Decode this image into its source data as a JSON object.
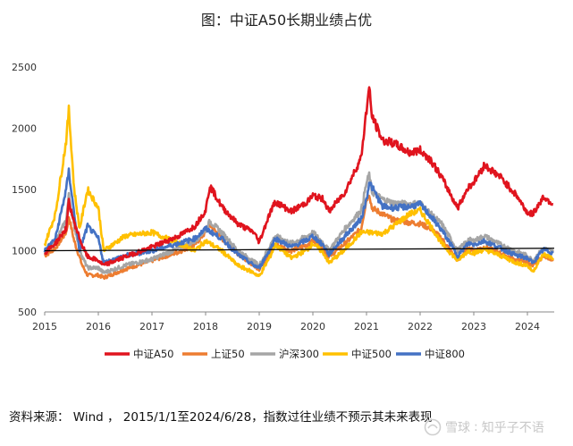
{
  "chart_data": {
    "type": "line",
    "title": "图：中证A50长期业绩占优",
    "xlabel": "",
    "ylabel": "",
    "x_ticks": [
      "2015",
      "2016",
      "2017",
      "2018",
      "2019",
      "2020",
      "2021",
      "2022",
      "2023",
      "2024"
    ],
    "y_ticks": [
      500,
      1000,
      1500,
      2000,
      2500
    ],
    "ylim": [
      500,
      2500
    ],
    "xlim": [
      2015.0,
      2024.5
    ],
    "grid": false,
    "legend_position": "bottom",
    "baseline": {
      "from": [
        2015.0,
        1000
      ],
      "to": [
        2024.5,
        1020
      ]
    },
    "series": [
      {
        "name": "中证A50",
        "color": "#e0141e",
        "x": [
          2015.0,
          2015.2,
          2015.4,
          2015.45,
          2015.55,
          2015.7,
          2015.8,
          2016.0,
          2016.1,
          2016.5,
          2017.0,
          2017.5,
          2017.8,
          2018.0,
          2018.08,
          2018.3,
          2018.6,
          2018.9,
          2019.0,
          2019.2,
          2019.3,
          2019.6,
          2019.9,
          2020.0,
          2020.2,
          2020.3,
          2020.6,
          2020.9,
          2021.0,
          2021.05,
          2021.1,
          2021.3,
          2021.5,
          2021.8,
          2022.0,
          2022.2,
          2022.4,
          2022.7,
          2022.9,
          2023.0,
          2023.2,
          2023.5,
          2023.8,
          2024.0,
          2024.1,
          2024.3,
          2024.48
        ],
        "values": [
          980,
          1060,
          1180,
          1400,
          1230,
          1040,
          950,
          920,
          880,
          950,
          1030,
          1120,
          1200,
          1330,
          1530,
          1360,
          1220,
          1150,
          1070,
          1310,
          1400,
          1320,
          1400,
          1450,
          1420,
          1320,
          1480,
          1760,
          2150,
          2330,
          2100,
          1900,
          1880,
          1800,
          1820,
          1740,
          1600,
          1350,
          1520,
          1560,
          1700,
          1600,
          1450,
          1310,
          1300,
          1440,
          1380
        ]
      },
      {
        "name": "上证50",
        "color": "#ed7d31",
        "x": [
          2015.0,
          2015.2,
          2015.4,
          2015.45,
          2015.55,
          2015.7,
          2015.8,
          2016.0,
          2016.1,
          2016.5,
          2017.0,
          2017.5,
          2017.8,
          2018.0,
          2018.08,
          2018.3,
          2018.6,
          2018.9,
          2019.0,
          2019.2,
          2019.3,
          2019.6,
          2019.9,
          2020.0,
          2020.2,
          2020.3,
          2020.6,
          2020.9,
          2021.0,
          2021.05,
          2021.1,
          2021.3,
          2021.5,
          2021.8,
          2022.0,
          2022.2,
          2022.4,
          2022.7,
          2022.9,
          2023.0,
          2023.2,
          2023.5,
          2023.8,
          2024.0,
          2024.1,
          2024.3,
          2024.48
        ],
        "values": [
          960,
          1020,
          1150,
          1280,
          1080,
          880,
          800,
          800,
          780,
          850,
          920,
          990,
          1050,
          1150,
          1210,
          1100,
          980,
          880,
          850,
          980,
          1050,
          1000,
          1050,
          1080,
          1010,
          950,
          1060,
          1180,
          1420,
          1470,
          1350,
          1300,
          1250,
          1230,
          1220,
          1180,
          1100,
          920,
          1020,
          1000,
          1030,
          980,
          920,
          910,
          870,
          960,
          930
        ]
      },
      {
        "name": "沪深300",
        "color": "#a5a5a5",
        "x": [
          2015.0,
          2015.2,
          2015.4,
          2015.45,
          2015.55,
          2015.7,
          2015.8,
          2016.0,
          2016.1,
          2016.5,
          2017.0,
          2017.5,
          2017.8,
          2018.0,
          2018.08,
          2018.3,
          2018.6,
          2018.9,
          2019.0,
          2019.2,
          2019.3,
          2019.6,
          2019.9,
          2020.0,
          2020.2,
          2020.3,
          2020.6,
          2020.9,
          2021.0,
          2021.05,
          2021.1,
          2021.3,
          2021.5,
          2021.8,
          2022.0,
          2022.2,
          2022.4,
          2022.7,
          2022.9,
          2023.0,
          2023.2,
          2023.5,
          2023.8,
          2024.0,
          2024.1,
          2024.3,
          2024.48
        ],
        "values": [
          980,
          1070,
          1250,
          1450,
          1200,
          950,
          860,
          860,
          820,
          880,
          930,
          1020,
          1080,
          1170,
          1240,
          1150,
          1000,
          910,
          880,
          1040,
          1120,
          1060,
          1120,
          1150,
          1060,
          1000,
          1180,
          1330,
          1550,
          1620,
          1480,
          1420,
          1390,
          1380,
          1390,
          1300,
          1220,
          1000,
          1090,
          1080,
          1120,
          1050,
          990,
          960,
          920,
          1020,
          990
        ]
      },
      {
        "name": "中证500",
        "color": "#ffc000",
        "x": [
          2015.0,
          2015.2,
          2015.3,
          2015.4,
          2015.45,
          2015.55,
          2015.65,
          2015.8,
          2016.0,
          2016.1,
          2016.5,
          2017.0,
          2017.5,
          2017.8,
          2018.0,
          2018.3,
          2018.6,
          2018.9,
          2019.0,
          2019.2,
          2019.3,
          2019.6,
          2019.9,
          2020.0,
          2020.2,
          2020.3,
          2020.6,
          2020.9,
          2021.0,
          2021.3,
          2021.5,
          2021.8,
          2022.0,
          2022.2,
          2022.4,
          2022.7,
          2022.9,
          2023.0,
          2023.2,
          2023.5,
          2023.8,
          2024.0,
          2024.1,
          2024.3,
          2024.48
        ],
        "values": [
          1050,
          1300,
          1600,
          1900,
          2150,
          1500,
          1180,
          1500,
          1350,
          1000,
          1120,
          1150,
          1060,
          1000,
          1080,
          1000,
          880,
          820,
          790,
          950,
          1050,
          940,
          1010,
          1060,
          980,
          900,
          1010,
          1150,
          1150,
          1140,
          1200,
          1300,
          1330,
          1200,
          1060,
          920,
          1000,
          980,
          1010,
          960,
          900,
          880,
          830,
          970,
          940
        ]
      },
      {
        "name": "中证800",
        "color": "#4472c4",
        "x": [
          2015.0,
          2015.2,
          2015.3,
          2015.4,
          2015.45,
          2015.55,
          2015.65,
          2015.8,
          2016.0,
          2016.1,
          2016.5,
          2017.0,
          2017.5,
          2017.8,
          2018.0,
          2018.3,
          2018.6,
          2018.9,
          2019.0,
          2019.2,
          2019.3,
          2019.6,
          2019.9,
          2020.0,
          2020.2,
          2020.3,
          2020.6,
          2020.9,
          2021.0,
          2021.05,
          2021.3,
          2021.5,
          2021.8,
          2022.0,
          2022.2,
          2022.4,
          2022.7,
          2022.9,
          2023.0,
          2023.2,
          2023.5,
          2023.8,
          2024.0,
          2024.1,
          2024.3,
          2024.48
        ],
        "values": [
          1000,
          1100,
          1300,
          1500,
          1650,
          1300,
          1000,
          1200,
          1100,
          900,
          960,
          1000,
          1060,
          1100,
          1180,
          1100,
          970,
          880,
          860,
          1010,
          1100,
          1030,
          1090,
          1120,
          1040,
          970,
          1120,
          1260,
          1420,
          1560,
          1360,
          1350,
          1360,
          1380,
          1280,
          1170,
          960,
          1060,
          1050,
          1080,
          1020,
          960,
          940,
          900,
          1010,
          980
        ]
      }
    ]
  },
  "source_text": "资料来源： Wind ， 2015/1/1至2024/6/28，指数过往业绩不预示其未来表现",
  "watermark": {
    "site": "雪球",
    "author": "知乎子不语"
  }
}
